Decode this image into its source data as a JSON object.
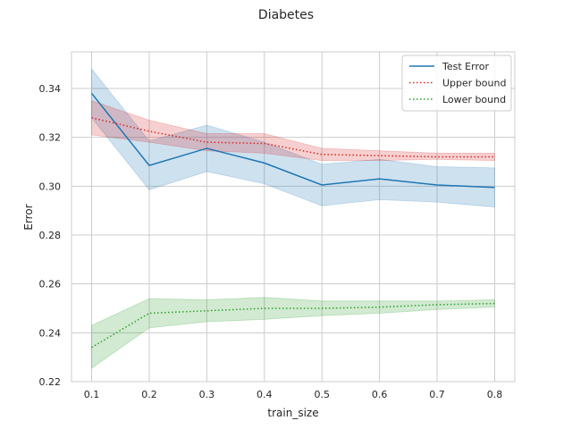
{
  "chart_data": {
    "type": "line",
    "title": "Diabetes",
    "xlabel": "train_size",
    "ylabel": "Error",
    "x": [
      0.1,
      0.2,
      0.3,
      0.4,
      0.5,
      0.6,
      0.7,
      0.8
    ],
    "xlim": [
      0.065,
      0.835
    ],
    "ylim": [
      0.22,
      0.355
    ],
    "xticks": [
      "0.1",
      "0.2",
      "0.3",
      "0.4",
      "0.5",
      "0.6",
      "0.7",
      "0.8"
    ],
    "yticks": [
      "0.22",
      "0.24",
      "0.26",
      "0.28",
      "0.30",
      "0.32",
      "0.34"
    ],
    "grid": true,
    "legend_position": "top-right",
    "series": [
      {
        "name": "Test Error",
        "color": "#1f77b4",
        "style": "solid",
        "values": [
          0.338,
          0.3085,
          0.3155,
          0.3095,
          0.3005,
          0.303,
          0.3005,
          0.2995
        ],
        "lower": [
          0.328,
          0.2985,
          0.306,
          0.301,
          0.292,
          0.2945,
          0.2935,
          0.2915
        ],
        "upper": [
          0.348,
          0.3185,
          0.325,
          0.318,
          0.309,
          0.311,
          0.308,
          0.3075
        ]
      },
      {
        "name": "Upper bound",
        "color": "#d62728",
        "style": "dotted",
        "values": [
          0.328,
          0.3225,
          0.318,
          0.3175,
          0.313,
          0.3125,
          0.312,
          0.312
        ],
        "lower": [
          0.321,
          0.318,
          0.3145,
          0.3135,
          0.3105,
          0.3105,
          0.311,
          0.3105
        ],
        "upper": [
          0.335,
          0.327,
          0.3215,
          0.3215,
          0.3155,
          0.3145,
          0.3135,
          0.3135
        ]
      },
      {
        "name": "Lower bound",
        "color": "#2ca02c",
        "style": "dotted",
        "values": [
          0.234,
          0.248,
          0.249,
          0.25,
          0.25,
          0.2505,
          0.2515,
          0.252
        ],
        "lower": [
          0.2255,
          0.242,
          0.2445,
          0.2455,
          0.247,
          0.248,
          0.2495,
          0.2505
        ],
        "upper": [
          0.243,
          0.254,
          0.2535,
          0.2545,
          0.253,
          0.253,
          0.253,
          0.2535
        ]
      }
    ]
  }
}
